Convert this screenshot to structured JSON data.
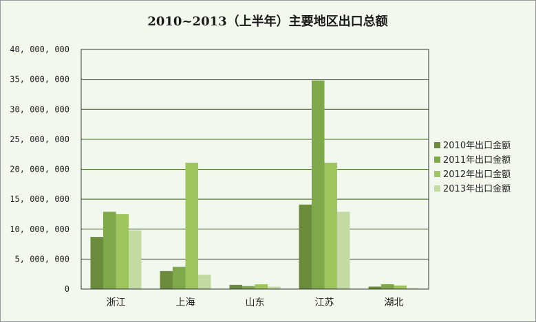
{
  "chart_data": {
    "type": "bar",
    "title": "2010~2013（上半年）主要地区出口总额",
    "xlabel": "",
    "ylabel": "",
    "categories": [
      "浙江",
      "上海",
      "山东",
      "江苏",
      "湖北"
    ],
    "ylim": [
      0,
      40000000
    ],
    "yticks": [
      0,
      5000000,
      10000000,
      15000000,
      20000000,
      25000000,
      30000000,
      35000000,
      40000000
    ],
    "ytick_labels": [
      "0",
      "5, 000, 000",
      "10, 000, 000",
      "15, 000, 000",
      "20, 000, 000",
      "25, 000, 000",
      "30, 000, 000",
      "35, 000, 000",
      "40, 000, 000"
    ],
    "grid": "horizontal",
    "legend_position": "right",
    "series": [
      {
        "name": "2010年出口金额",
        "color": "#6b8c3a",
        "values": [
          8700000,
          3000000,
          700000,
          14100000,
          400000
        ]
      },
      {
        "name": "2011年出口金额",
        "color": "#7fa84a",
        "values": [
          12900000,
          3700000,
          500000,
          34800000,
          800000
        ]
      },
      {
        "name": "2012年出口金额",
        "color": "#9fc55e",
        "values": [
          12500000,
          21100000,
          800000,
          21100000,
          600000
        ]
      },
      {
        "name": "2013年出口金额",
        "color": "#c2dba3",
        "values": [
          9800000,
          2400000,
          400000,
          12900000,
          100000
        ]
      }
    ]
  }
}
